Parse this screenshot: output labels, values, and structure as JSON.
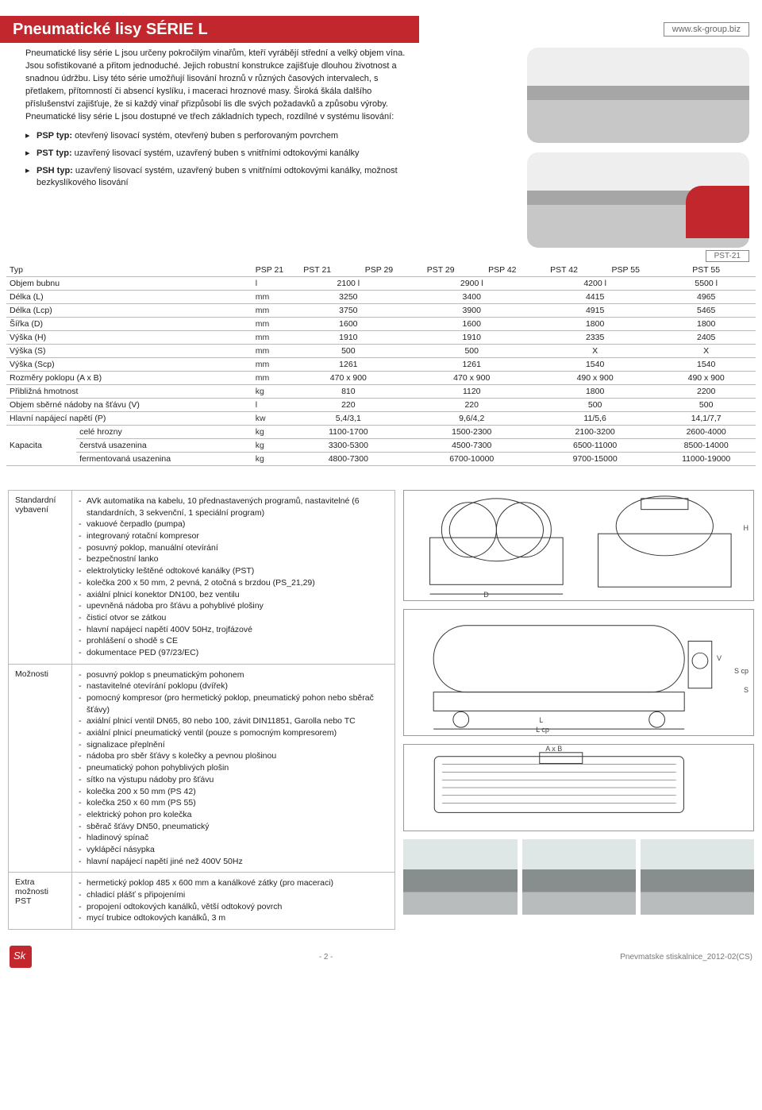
{
  "header": {
    "title": "Pneumatické lisy SÉRIE L",
    "url": "www.sk-group.biz"
  },
  "image_caption": "PST-21",
  "intro": "Pneumatické lisy série L jsou určeny pokročilým vinařům, kteří vyrábějí střední a velký objem vína. Jsou sofistikované a přitom jednoduché. Jejich robustní konstrukce zajišťuje dlouhou životnost a snadnou údržbu. Lisy této série umožňují lisování hroznů v různých časových intervalech, s přetlakem, přítomností či absencí kyslíku, i maceraci hroznové masy. Široká škála dalšího příslušenství zajišťuje, že si každý vinař přizpůsobí lis dle svých požadavků a způsobu výroby. Pneumatické lisy série L jsou dostupné ve třech základních typech, rozdílné v systému lisování:",
  "bullets": [
    {
      "b": "PSP typ:",
      "t": " otevřený lisovací systém, otevřený buben s perforovaným povrchem"
    },
    {
      "b": "PST typ:",
      "t": " uzavřený lisovací systém, uzavřený buben s vnitřními odtokovými kanálky"
    },
    {
      "b": "PSH typ:",
      "t": " uzavřený lisovací systém, uzavřený buben s vnitřními odtokovými kanálky, možnost bezkyslíkového lisování"
    }
  ],
  "spec": {
    "head": [
      "Typ",
      "",
      "PSP 21",
      "PST 21",
      "PSP 29",
      "PST 29",
      "PSP 42",
      "PST 42",
      "PSP 55",
      "PST 55"
    ],
    "rows": [
      {
        "label": "Objem bubnu",
        "unit": "l",
        "vals": [
          "2100 l",
          "2900 l",
          "4200 l",
          "5500 l"
        ]
      },
      {
        "label": "Délka (L)",
        "unit": "mm",
        "vals": [
          "3250",
          "3400",
          "4415",
          "4965"
        ]
      },
      {
        "label": "Délka (Lcp)",
        "unit": "mm",
        "vals": [
          "3750",
          "3900",
          "4915",
          "5465"
        ]
      },
      {
        "label": "Šířka (D)",
        "unit": "mm",
        "vals": [
          "1600",
          "1600",
          "1800",
          "1800"
        ]
      },
      {
        "label": "Výška (H)",
        "unit": "mm",
        "vals": [
          "1910",
          "1910",
          "2335",
          "2405"
        ]
      },
      {
        "label": "Výška (S)",
        "unit": "mm",
        "vals": [
          "500",
          "500",
          "X",
          "X"
        ]
      },
      {
        "label": "Výška (Scp)",
        "unit": "mm",
        "vals": [
          "1261",
          "1261",
          "1540",
          "1540"
        ]
      },
      {
        "label": "Rozměry poklopu (A x B)",
        "unit": "mm",
        "vals": [
          "470 x 900",
          "470 x 900",
          "490 x 900",
          "490 x 900"
        ]
      },
      {
        "label": "Přibližná hmotnost",
        "unit": "kg",
        "vals": [
          "810",
          "1120",
          "1800",
          "2200"
        ]
      },
      {
        "label": "Objem sběrné nádoby na šťávu (V)",
        "unit": "l",
        "vals": [
          "220",
          "220",
          "500",
          "500"
        ]
      },
      {
        "label": "Hlavní napájecí napětí (P)",
        "unit": "kw",
        "vals": [
          "5,4/3,1",
          "9,6/4,2",
          "11/5,6",
          "14,1/7,7"
        ]
      }
    ],
    "capacity": {
      "lead": "Kapacita",
      "rows": [
        {
          "label": "celé hrozny",
          "unit": "kg",
          "vals": [
            "1100-1700",
            "1500-2300",
            "2100-3200",
            "2600-4000"
          ]
        },
        {
          "label": "čerstvá usazenina",
          "unit": "kg",
          "vals": [
            "3300-5300",
            "4500-7300",
            "6500-11000",
            "8500-14000"
          ]
        },
        {
          "label": "fermentovaná usazenina",
          "unit": "kg",
          "vals": [
            "4800-7300",
            "6700-10000",
            "9700-15000",
            "11000-19000"
          ]
        }
      ]
    }
  },
  "equip": {
    "std_label": "Standardní\nvybavení",
    "std": [
      "AVk automatika na kabelu, 10 přednastavených programů, nastavitelné (6 standardních, 3 sekvenční, 1 speciální program)",
      "vakuové čerpadlo (pumpa)",
      "integrovaný rotační kompresor",
      "posuvný poklop, manuální otevírání",
      "bezpečnostní lanko",
      "elektrolyticky leštěné odtokové kanálky (PST)",
      "kolečka 200 x 50 mm, 2 pevná, 2 otočná s brzdou (PS_21,29)",
      "axiální plnicí konektor DN100, bez ventilu",
      "upevněná nádoba pro šťávu a pohyblivé plošiny",
      "čisticí otvor se zátkou",
      "hlavní napájecí napětí 400V 50Hz, trojfázové",
      "prohlášení o shodě s CE",
      "dokumentace PED (97/23/EC)"
    ],
    "opt_label": "Možnosti",
    "opt": [
      "posuvný poklop s pneumatickým pohonem",
      "nastavitelné otevírání poklopu (dvířek)",
      "pomocný kompresor (pro hermetický poklop, pneumatický pohon nebo sběrač šťávy)",
      "axiální plnicí ventil DN65, 80 nebo 100, závit DIN11851, Garolla nebo TC",
      "axiální plnicí pneumatický ventil (pouze s pomocným kompresorem)",
      "signalizace přeplnění",
      "nádoba pro sběr šťávy s kolečky a pevnou plošinou",
      "pneumatický pohon pohyblivých plošin",
      "sítko na výstupu nádoby pro šťávu",
      "kolečka 200 x 50 mm (PS 42)",
      "kolečka 250 x 60 mm (PS 55)",
      "elektrický pohon pro kolečka",
      "sběrač šťávy DN50, pneumatický",
      "hladinový spínač",
      "vyklápěcí násypka",
      "hlavní napájecí napětí jiné než 400V 50Hz"
    ],
    "extra_label": "Extra\nmožnosti PST",
    "extra": [
      "hermetický poklop 485 x 600 mm a kanálkové zátky (pro maceraci)",
      "chladicí plášť s připojeními",
      "propojení odtokových kanálků, větší odtokový povrch",
      "mycí trubice odtokových kanálků, 3 m"
    ]
  },
  "diagram_labels": {
    "D": "D",
    "L": "L",
    "Lcp": "L cp",
    "AxB": "A x B",
    "V": "V",
    "S": "S",
    "Scp": "S cp",
    "H": "H"
  },
  "footer": {
    "page": "- 2 -",
    "doc": "Pnevmatske stiskalnice_2012-02(CS)"
  }
}
